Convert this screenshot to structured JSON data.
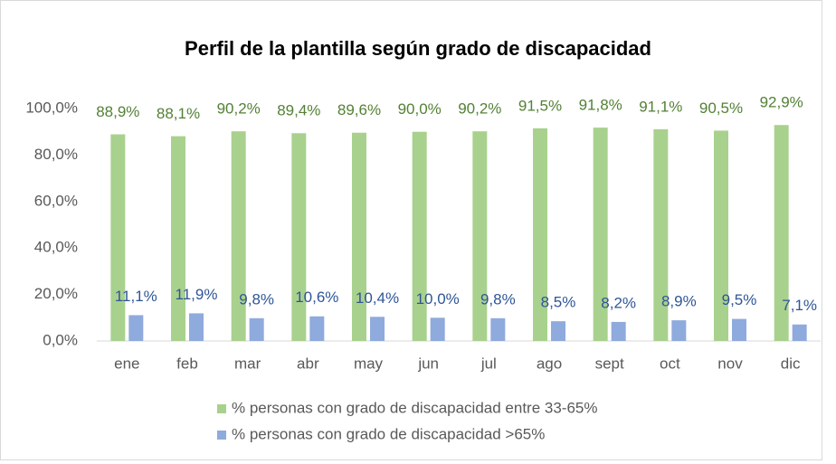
{
  "chart_data": {
    "type": "bar",
    "title": "Perfil de la plantilla según grado de discapacidad",
    "categories": [
      "ene",
      "feb",
      "mar",
      "abr",
      "may",
      "jun",
      "jul",
      "ago",
      "sept",
      "oct",
      "nov",
      "dic"
    ],
    "series": [
      {
        "name": "% personas con grado de discapacidad entre 33-65%",
        "color": "#a9d18e",
        "label_color": "#538135",
        "values": [
          88.9,
          88.1,
          90.2,
          89.4,
          89.6,
          90.0,
          90.2,
          91.5,
          91.8,
          91.1,
          90.5,
          92.9
        ],
        "value_labels": [
          "88,9%",
          "88,1%",
          "90,2%",
          "89,4%",
          "89,6%",
          "90,0%",
          "90,2%",
          "91,5%",
          "91,8%",
          "91,1%",
          "90,5%",
          "92,9%"
        ]
      },
      {
        "name": "% personas con grado de discapacidad >65%",
        "color": "#8faadc",
        "label_color": "#2f5597",
        "values": [
          11.1,
          11.9,
          9.8,
          10.6,
          10.4,
          10.0,
          9.8,
          8.5,
          8.2,
          8.9,
          9.5,
          7.1
        ],
        "value_labels": [
          "11,1%",
          "11,9%",
          "9,8%",
          "10,6%",
          "10,4%",
          "10,0%",
          "9,8%",
          "8,5%",
          "8,2%",
          "8,9%",
          "9,5%",
          "7,1%"
        ]
      }
    ],
    "ylim": [
      0,
      100
    ],
    "yticks": [
      {
        "value": 0,
        "label": "0,0%"
      },
      {
        "value": 20,
        "label": "20,0%"
      },
      {
        "value": 40,
        "label": "40,0%"
      },
      {
        "value": 60,
        "label": "60,0%"
      },
      {
        "value": 80,
        "label": "80,0%"
      },
      {
        "value": 100,
        "label": "100,0%"
      }
    ],
    "grid": false,
    "legend": "bottom"
  }
}
